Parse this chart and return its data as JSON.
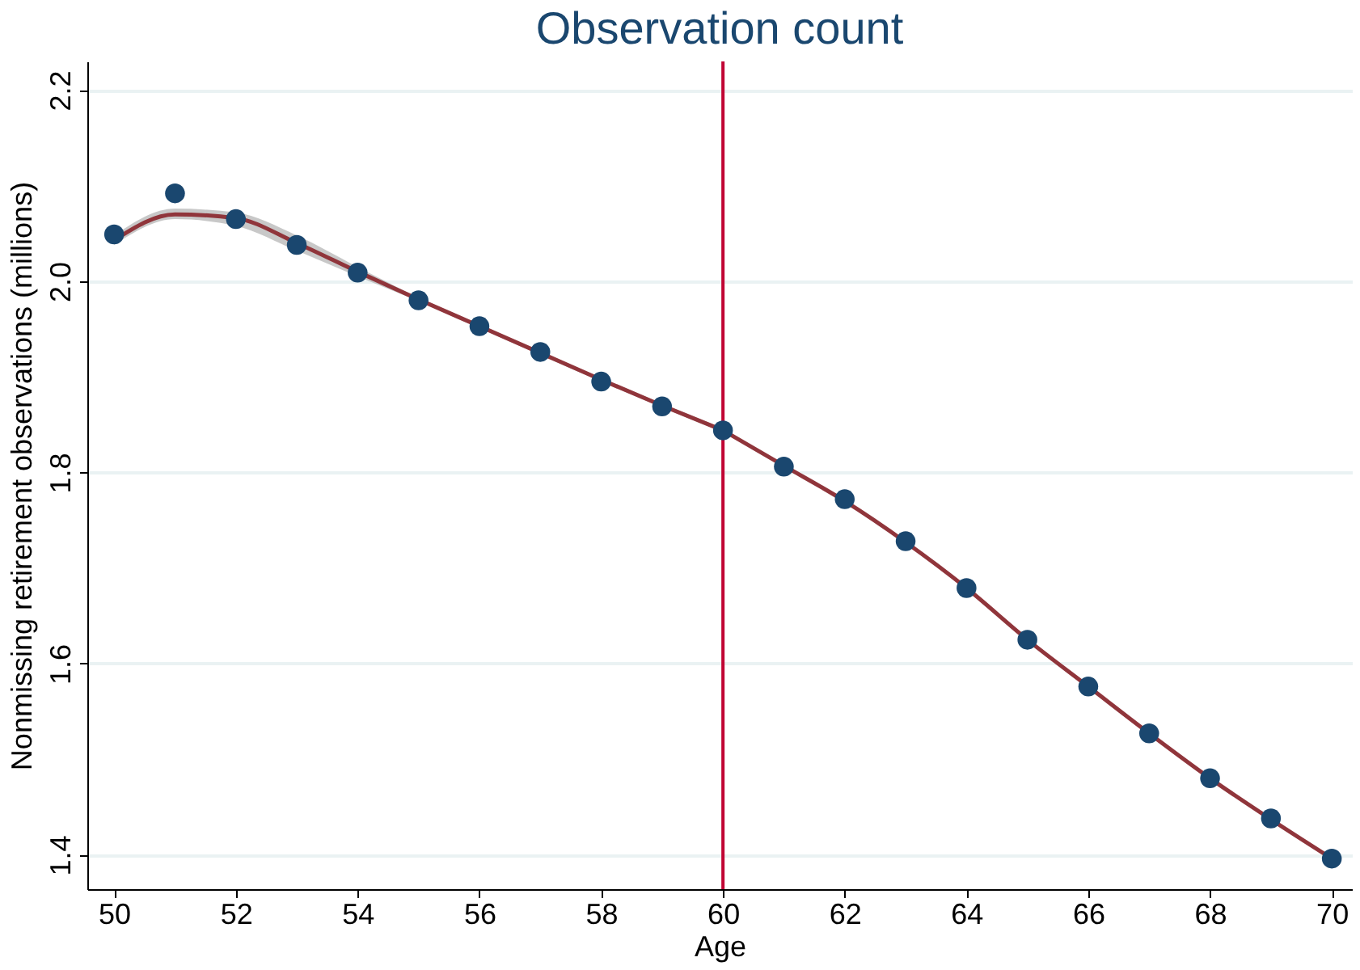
{
  "chart_data": {
    "type": "scatter",
    "title": "Observation count",
    "xlabel": "Age",
    "ylabel": "Nonmissing retirement observations (millions)",
    "xlim": [
      49.56,
      70.33
    ],
    "ylim": [
      1.364,
      2.23
    ],
    "xticks": [
      50,
      52,
      54,
      56,
      58,
      60,
      62,
      64,
      66,
      68,
      70
    ],
    "yticks": [
      1.4,
      1.6,
      1.8,
      {
        "value": 2,
        "label": "2.0"
      },
      2.2
    ],
    "grid": "y",
    "marker": "circle",
    "series": [
      {
        "type": "line",
        "marker": "none",
        "line_style": "solid",
        "color": "#90353b",
        "x": [
          50,
          51,
          52,
          53,
          54,
          55,
          56,
          57,
          58,
          59,
          60
        ],
        "values": [
          2.043,
          2.07,
          2.066,
          2.04,
          2.01,
          1.981,
          1.953,
          1.925,
          1.897,
          1.87,
          1.844
        ],
        "lower": [
          2.038,
          2.065,
          2.058,
          2.032,
          2.005,
          1.979,
          1.951,
          1.923,
          1.895,
          1.868,
          1.842
        ],
        "upper": [
          2.048,
          2.076,
          2.072,
          2.048,
          2.015,
          1.983,
          1.955,
          1.927,
          1.899,
          1.872,
          1.846
        ]
      },
      {
        "type": "line",
        "marker": "none",
        "line_style": "solid",
        "color": "#90353b",
        "x": [
          60,
          61,
          62,
          63,
          64,
          65,
          66,
          67,
          68,
          69,
          70
        ],
        "values": [
          1.844,
          1.807,
          1.77,
          1.727,
          1.679,
          1.625,
          1.576,
          1.527,
          1.48,
          1.437,
          1.396
        ]
      },
      {
        "color": "#1a476f",
        "x": [
          50,
          51,
          52,
          53,
          54,
          55,
          56,
          57,
          58,
          59,
          60,
          61,
          62,
          63,
          64,
          65,
          66,
          67,
          68,
          69,
          70
        ],
        "values": [
          2.049,
          2.092,
          2.065,
          2.038,
          2.009,
          1.98,
          1.953,
          1.926,
          1.895,
          1.869,
          1.844,
          1.806,
          1.772,
          1.728,
          1.679,
          1.625,
          1.576,
          1.527,
          1.48,
          1.438,
          1.396
        ]
      }
    ],
    "ref_lines": [
      {
        "axis": "x",
        "value": 60,
        "color": "#c10534",
        "line_style": "solid"
      }
    ]
  }
}
